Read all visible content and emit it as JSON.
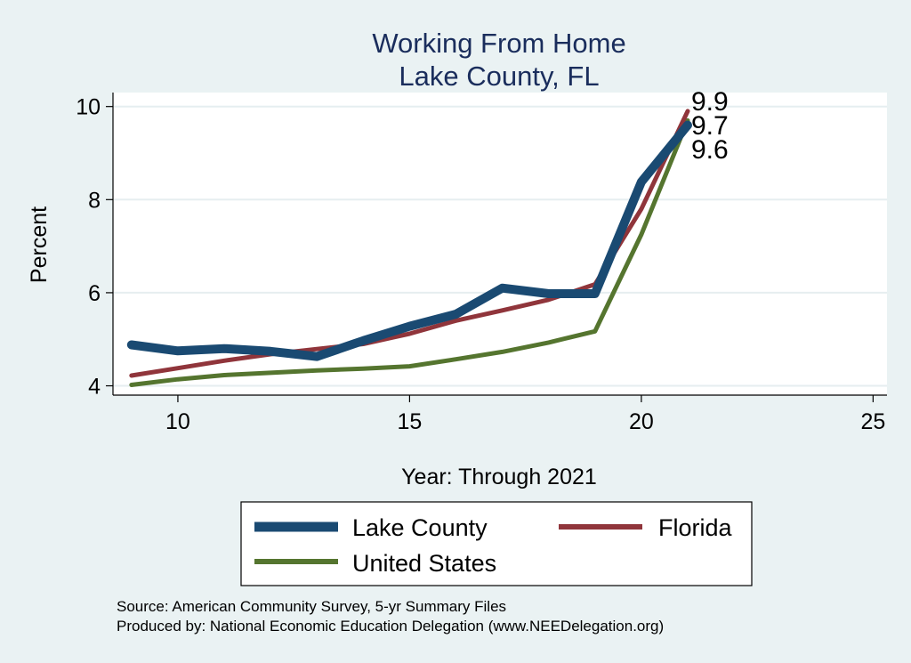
{
  "chart_data": {
    "type": "line",
    "title": "Working From Home",
    "subtitle": "Lake County, FL",
    "xlabel": "Year: Through 2021",
    "ylabel": "Percent",
    "xlim": [
      8.6,
      25.3
    ],
    "ylim": [
      3.8,
      10.3
    ],
    "x_ticks": [
      10,
      15,
      20,
      25
    ],
    "y_ticks": [
      4,
      6,
      8,
      10
    ],
    "grid": true,
    "legend_position": "bottom",
    "series": [
      {
        "name": "Lake County",
        "color": "#1a4a72",
        "width": 10,
        "x": [
          9,
          10,
          11,
          12,
          13,
          14,
          15,
          16,
          17,
          18,
          19,
          20,
          21
        ],
        "y": [
          4.88,
          4.75,
          4.8,
          4.74,
          4.63,
          4.97,
          5.28,
          5.54,
          6.1,
          5.98,
          5.98,
          8.38,
          9.6
        ],
        "end_label": "9.6"
      },
      {
        "name": "Florida",
        "color": "#90353b",
        "width": 5,
        "x": [
          9,
          10,
          11,
          12,
          13,
          14,
          15,
          16,
          17,
          18,
          19,
          20,
          21
        ],
        "y": [
          4.22,
          4.38,
          4.54,
          4.68,
          4.79,
          4.9,
          5.12,
          5.4,
          5.62,
          5.85,
          6.18,
          7.8,
          9.9
        ],
        "end_label": "9.9"
      },
      {
        "name": "United States",
        "color": "#55752f",
        "width": 5,
        "x": [
          9,
          10,
          11,
          12,
          13,
          14,
          15,
          16,
          17,
          18,
          19,
          20,
          21
        ],
        "y": [
          4.02,
          4.14,
          4.23,
          4.28,
          4.33,
          4.37,
          4.42,
          4.57,
          4.73,
          4.93,
          5.17,
          7.25,
          9.7
        ],
        "end_label": "9.7"
      }
    ],
    "notes": [
      "Source: American Community Survey, 5-yr Summary Files",
      "Produced by: National Economic Education Delegation (www.NEEDelegation.org)"
    ]
  }
}
